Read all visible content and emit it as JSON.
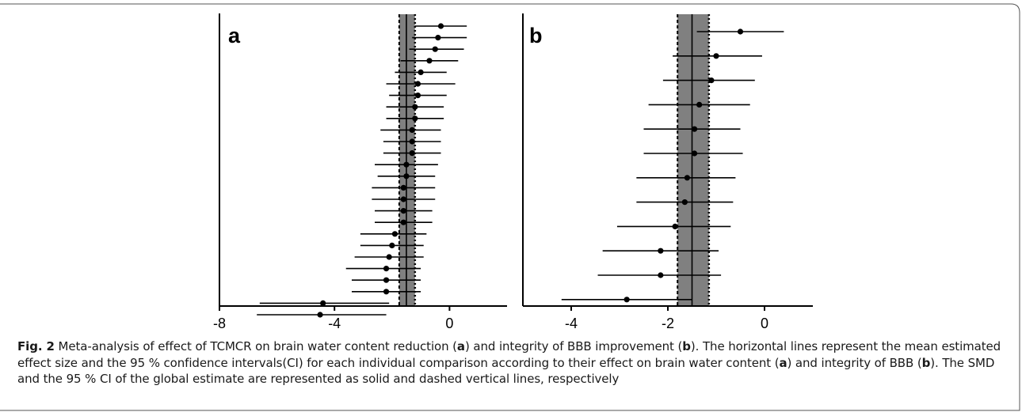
{
  "caption": {
    "fig_label": "Fig. 2",
    "text_1": " Meta-analysis of effect of TCMCR on brain water content reduction (",
    "ref_a1": "a",
    "text_2": ") and integrity of BBB improvement (",
    "ref_b1": "b",
    "text_3": "). The horizontal lines represent the mean estimated effect size and the 95 % confidence intervals(CI) for each individual comparison according to their effect on brain water content (",
    "ref_a2": "a",
    "text_4": ") and integrity of BBB (",
    "ref_b2": "b",
    "text_5": "). The SMD and the 95 % CI of the global estimate are represented as solid and dashed vertical lines, respectively"
  },
  "chart_data": [
    {
      "type": "forest",
      "panel_label": "a",
      "xlim": [
        -8,
        2
      ],
      "xticks": [
        -8,
        -4,
        0
      ],
      "xtick_labels": [
        "-8",
        "-4",
        "0"
      ],
      "global_estimate": {
        "smd": -1.5,
        "ci": [
          -1.75,
          -1.2
        ]
      },
      "studies": [
        {
          "est": -0.3,
          "lo": -1.2,
          "hi": 0.6
        },
        {
          "est": -0.4,
          "lo": -1.3,
          "hi": 0.6
        },
        {
          "est": -0.5,
          "lo": -1.4,
          "hi": 0.5
        },
        {
          "est": -0.7,
          "lo": -1.7,
          "hi": 0.3
        },
        {
          "est": -1.0,
          "lo": -1.9,
          "hi": -0.1
        },
        {
          "est": -1.1,
          "lo": -2.2,
          "hi": 0.2
        },
        {
          "est": -1.1,
          "lo": -2.1,
          "hi": -0.1
        },
        {
          "est": -1.2,
          "lo": -2.2,
          "hi": -0.2
        },
        {
          "est": -1.2,
          "lo": -2.2,
          "hi": -0.2
        },
        {
          "est": -1.3,
          "lo": -2.4,
          "hi": -0.3
        },
        {
          "est": -1.3,
          "lo": -2.3,
          "hi": -0.3
        },
        {
          "est": -1.3,
          "lo": -2.3,
          "hi": -0.3
        },
        {
          "est": -1.5,
          "lo": -2.6,
          "hi": -0.4
        },
        {
          "est": -1.5,
          "lo": -2.5,
          "hi": -0.5
        },
        {
          "est": -1.6,
          "lo": -2.7,
          "hi": -0.5
        },
        {
          "est": -1.6,
          "lo": -2.7,
          "hi": -0.5
        },
        {
          "est": -1.6,
          "lo": -2.6,
          "hi": -0.6
        },
        {
          "est": -1.6,
          "lo": -2.6,
          "hi": -0.6
        },
        {
          "est": -1.9,
          "lo": -3.1,
          "hi": -0.8
        },
        {
          "est": -2.0,
          "lo": -3.1,
          "hi": -0.9
        },
        {
          "est": -2.1,
          "lo": -3.3,
          "hi": -0.9
        },
        {
          "est": -2.2,
          "lo": -3.6,
          "hi": -1.0
        },
        {
          "est": -2.2,
          "lo": -3.4,
          "hi": -1.0
        },
        {
          "est": -2.2,
          "lo": -3.4,
          "hi": -1.0
        },
        {
          "est": -4.4,
          "lo": -6.6,
          "hi": -2.1
        },
        {
          "est": -4.5,
          "lo": -6.7,
          "hi": -2.2
        }
      ]
    },
    {
      "type": "forest",
      "panel_label": "b",
      "xlim": [
        -5,
        1
      ],
      "xticks": [
        -4,
        -2,
        0
      ],
      "xtick_labels": [
        "-4",
        "-2",
        "0"
      ],
      "global_estimate": {
        "smd": -1.5,
        "ci": [
          -1.8,
          -1.15
        ]
      },
      "studies": [
        {
          "est": -0.5,
          "lo": -1.4,
          "hi": 0.4
        },
        {
          "est": -1.0,
          "lo": -1.9,
          "hi": -0.05
        },
        {
          "est": -1.1,
          "lo": -2.1,
          "hi": -0.2
        },
        {
          "est": -1.35,
          "lo": -2.4,
          "hi": -0.3
        },
        {
          "est": -1.45,
          "lo": -2.5,
          "hi": -0.5
        },
        {
          "est": -1.45,
          "lo": -2.5,
          "hi": -0.45
        },
        {
          "est": -1.6,
          "lo": -2.65,
          "hi": -0.6
        },
        {
          "est": -1.65,
          "lo": -2.65,
          "hi": -0.65
        },
        {
          "est": -1.85,
          "lo": -3.05,
          "hi": -0.7
        },
        {
          "est": -2.15,
          "lo": -3.35,
          "hi": -0.95
        },
        {
          "est": -2.15,
          "lo": -3.45,
          "hi": -0.9
        },
        {
          "est": -2.85,
          "lo": -4.2,
          "hi": -1.5
        }
      ]
    }
  ],
  "colors": {
    "ci_band": "#808080",
    "line": "#000000",
    "frame": "#555555"
  }
}
